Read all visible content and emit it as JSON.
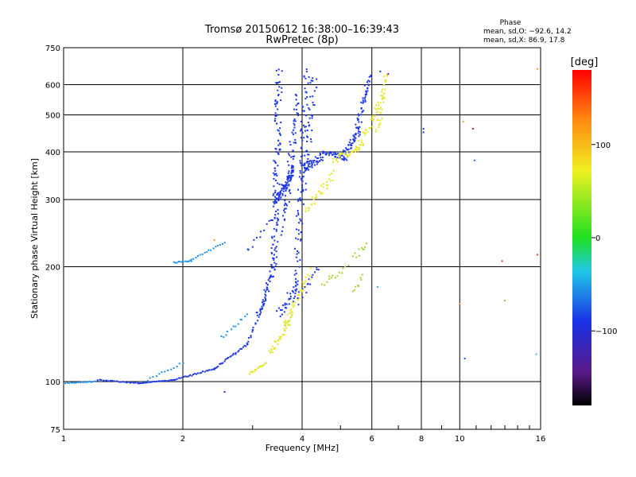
{
  "chart_data": {
    "type": "scatter",
    "title": "Tromsø 20150612 16:38:00–16:39:43",
    "subtitle": "RwPretec (8p)",
    "xlabel": "Frequency [MHz]",
    "ylabel": "Stationary phase Virtual Height [km]",
    "x_scale": "log",
    "y_scale": "log",
    "xlim": [
      1,
      16
    ],
    "ylim": [
      75,
      750
    ],
    "x_ticks": [
      1,
      2,
      4,
      6,
      8,
      10,
      16
    ],
    "y_ticks": [
      75,
      100,
      200,
      300,
      400,
      500,
      600,
      750
    ],
    "x_tick_labels": [
      "1",
      "2",
      "4",
      "6",
      "8",
      "10",
      "16"
    ],
    "y_tick_labels": [
      "75",
      "100",
      "200",
      "300",
      "400",
      "500",
      "600",
      "750"
    ],
    "grid": true,
    "phase_stats": {
      "heading": "Phase",
      "o_line": "mean, sd,O: −92.6, 14.2",
      "x_line": "mean, sd,X: 86.9, 17.8"
    },
    "colorbar": {
      "label": "[deg]",
      "range": [
        -180,
        180
      ],
      "ticks": [
        100,
        0,
        -100
      ],
      "tick_labels": [
        "100",
        "0",
        "−100"
      ]
    },
    "series": [
      {
        "mode": "O",
        "color": "#1a35e6",
        "traces": [
          {
            "from": [
              1.22,
              101
            ],
            "to": [
              1.55,
              99
            ],
            "n": 24,
            "spread": 0.5
          },
          {
            "from": [
              1.55,
              99
            ],
            "to": [
              1.9,
              101
            ],
            "n": 22,
            "spread": 0.5
          },
          {
            "from": [
              1.9,
              101
            ],
            "to": [
              2.4,
              108
            ],
            "n": 26,
            "spread": 0.8
          },
          {
            "from": [
              2.4,
              108
            ],
            "to": [
              2.9,
              125
            ],
            "n": 26,
            "spread": 1.2
          },
          {
            "from": [
              2.9,
              125
            ],
            "to": [
              3.2,
              160
            ],
            "n": 22,
            "spread": 2.5
          },
          {
            "from": [
              3.15,
              150
            ],
            "to": [
              3.4,
              210
            ],
            "n": 16,
            "spread": 3
          },
          {
            "from": [
              3.4,
              200
            ],
            "to": [
              3.5,
              650
            ],
            "n": 120,
            "spread": 8
          },
          {
            "from": [
              3.45,
              300
            ],
            "to": [
              3.8,
              360
            ],
            "n": 70,
            "spread": 6
          },
          {
            "from": [
              3.6,
              250
            ],
            "to": [
              3.9,
              560
            ],
            "n": 70,
            "spread": 8
          },
          {
            "from": [
              3.85,
              160
            ],
            "to": [
              4.1,
              650
            ],
            "n": 90,
            "spread": 8
          },
          {
            "from": [
              4.0,
              300
            ],
            "to": [
              4.3,
              640
            ],
            "n": 50,
            "spread": 8
          },
          {
            "from": [
              4.0,
              360
            ],
            "to": [
              4.5,
              390
            ],
            "n": 45,
            "spread": 5
          },
          {
            "from": [
              4.5,
              400
            ],
            "to": [
              5.2,
              385
            ],
            "n": 40,
            "spread": 3
          },
          {
            "from": [
              5.1,
              390
            ],
            "to": [
              5.6,
              460
            ],
            "n": 40,
            "spread": 5
          },
          {
            "from": [
              5.5,
              450
            ],
            "to": [
              5.85,
              600
            ],
            "n": 35,
            "spread": 6
          },
          {
            "from": [
              5.8,
              560
            ],
            "to": [
              5.95,
              640
            ],
            "n": 10,
            "spread": 3
          },
          {
            "from": [
              2.9,
              220
            ],
            "to": [
              3.4,
              270
            ],
            "n": 12,
            "spread": 3
          },
          {
            "from": [
              3.1,
              150
            ],
            "to": [
              3.4,
              200
            ],
            "n": 30,
            "spread": 6
          },
          {
            "from": [
              3.5,
              150
            ],
            "to": [
              3.9,
              180
            ],
            "n": 30,
            "spread": 6
          },
          {
            "from": [
              4.0,
              170
            ],
            "to": [
              4.4,
              200
            ],
            "n": 14,
            "spread": 5
          }
        ]
      },
      {
        "mode": "O-low",
        "color": "#1e90e8",
        "traces": [
          {
            "from": [
              1.0,
              99
            ],
            "to": [
              1.2,
              100
            ],
            "n": 18,
            "spread": 0.6
          },
          {
            "from": [
              1.6,
              100
            ],
            "to": [
              2.0,
              112
            ],
            "n": 14,
            "spread": 1.2
          },
          {
            "from": [
              1.9,
              205
            ],
            "to": [
              2.1,
              207
            ],
            "n": 12,
            "spread": 0.8
          },
          {
            "from": [
              2.1,
              208
            ],
            "to": [
              2.55,
              232
            ],
            "n": 16,
            "spread": 1.5
          },
          {
            "from": [
              2.5,
              130
            ],
            "to": [
              2.9,
              150
            ],
            "n": 12,
            "spread": 2.5
          }
        ]
      },
      {
        "mode": "X",
        "color": "#e4e62a",
        "traces": [
          {
            "from": [
              2.95,
              105
            ],
            "to": [
              3.25,
              112
            ],
            "n": 16,
            "spread": 1
          },
          {
            "from": [
              3.3,
              118
            ],
            "to": [
              3.8,
              150
            ],
            "n": 40,
            "spread": 4
          },
          {
            "from": [
              3.6,
              140
            ],
            "to": [
              4.2,
              195
            ],
            "n": 35,
            "spread": 5
          },
          {
            "from": [
              4.1,
              280
            ],
            "to": [
              4.8,
              350
            ],
            "n": 30,
            "spread": 5
          },
          {
            "from": [
              4.8,
              380
            ],
            "to": [
              5.6,
              410
            ],
            "n": 30,
            "spread": 4
          },
          {
            "from": [
              5.5,
              400
            ],
            "to": [
              6.4,
              560
            ],
            "n": 40,
            "spread": 6
          },
          {
            "from": [
              6.2,
              450
            ],
            "to": [
              6.5,
              640
            ],
            "n": 35,
            "spread": 6
          }
        ]
      },
      {
        "mode": "X-green",
        "color": "#9fd232",
        "traces": [
          {
            "from": [
              4.5,
              180
            ],
            "to": [
              5.2,
              200
            ],
            "n": 14,
            "spread": 4
          },
          {
            "from": [
              5.4,
              210
            ],
            "to": [
              5.8,
              230
            ],
            "n": 10,
            "spread": 4
          },
          {
            "from": [
              5.4,
              170
            ],
            "to": [
              5.7,
              190
            ],
            "n": 8,
            "spread": 3
          }
        ]
      }
    ],
    "scattered_points": [
      {
        "x": 2.55,
        "y": 94,
        "color": "#1a35e6"
      },
      {
        "x": 2.4,
        "y": 235,
        "color": "#e6a020"
      },
      {
        "x": 6.2,
        "y": 177,
        "color": "#20b8e8"
      },
      {
        "x": 8.1,
        "y": 460,
        "color": "#1a35e6"
      },
      {
        "x": 8.1,
        "y": 450,
        "color": "#1a35e6"
      },
      {
        "x": 10.2,
        "y": 480,
        "color": "#e6a020"
      },
      {
        "x": 10.8,
        "y": 460,
        "color": "#8a2090"
      },
      {
        "x": 10.9,
        "y": 380,
        "color": "#1e70e8"
      },
      {
        "x": 12.8,
        "y": 207,
        "color": "#e04020"
      },
      {
        "x": 10.0,
        "y": 160,
        "color": "#e6a020"
      },
      {
        "x": 10.3,
        "y": 115,
        "color": "#1e50e8"
      },
      {
        "x": 13.0,
        "y": 163,
        "color": "#e6a020"
      },
      {
        "x": 15.7,
        "y": 660,
        "color": "#e6a020"
      },
      {
        "x": 15.7,
        "y": 215,
        "color": "#e04020"
      },
      {
        "x": 15.6,
        "y": 118,
        "color": "#20c0e0"
      },
      {
        "x": 6.3,
        "y": 650,
        "color": "#1a35e6"
      },
      {
        "x": 6.6,
        "y": 640,
        "color": "#7a2090"
      }
    ]
  }
}
